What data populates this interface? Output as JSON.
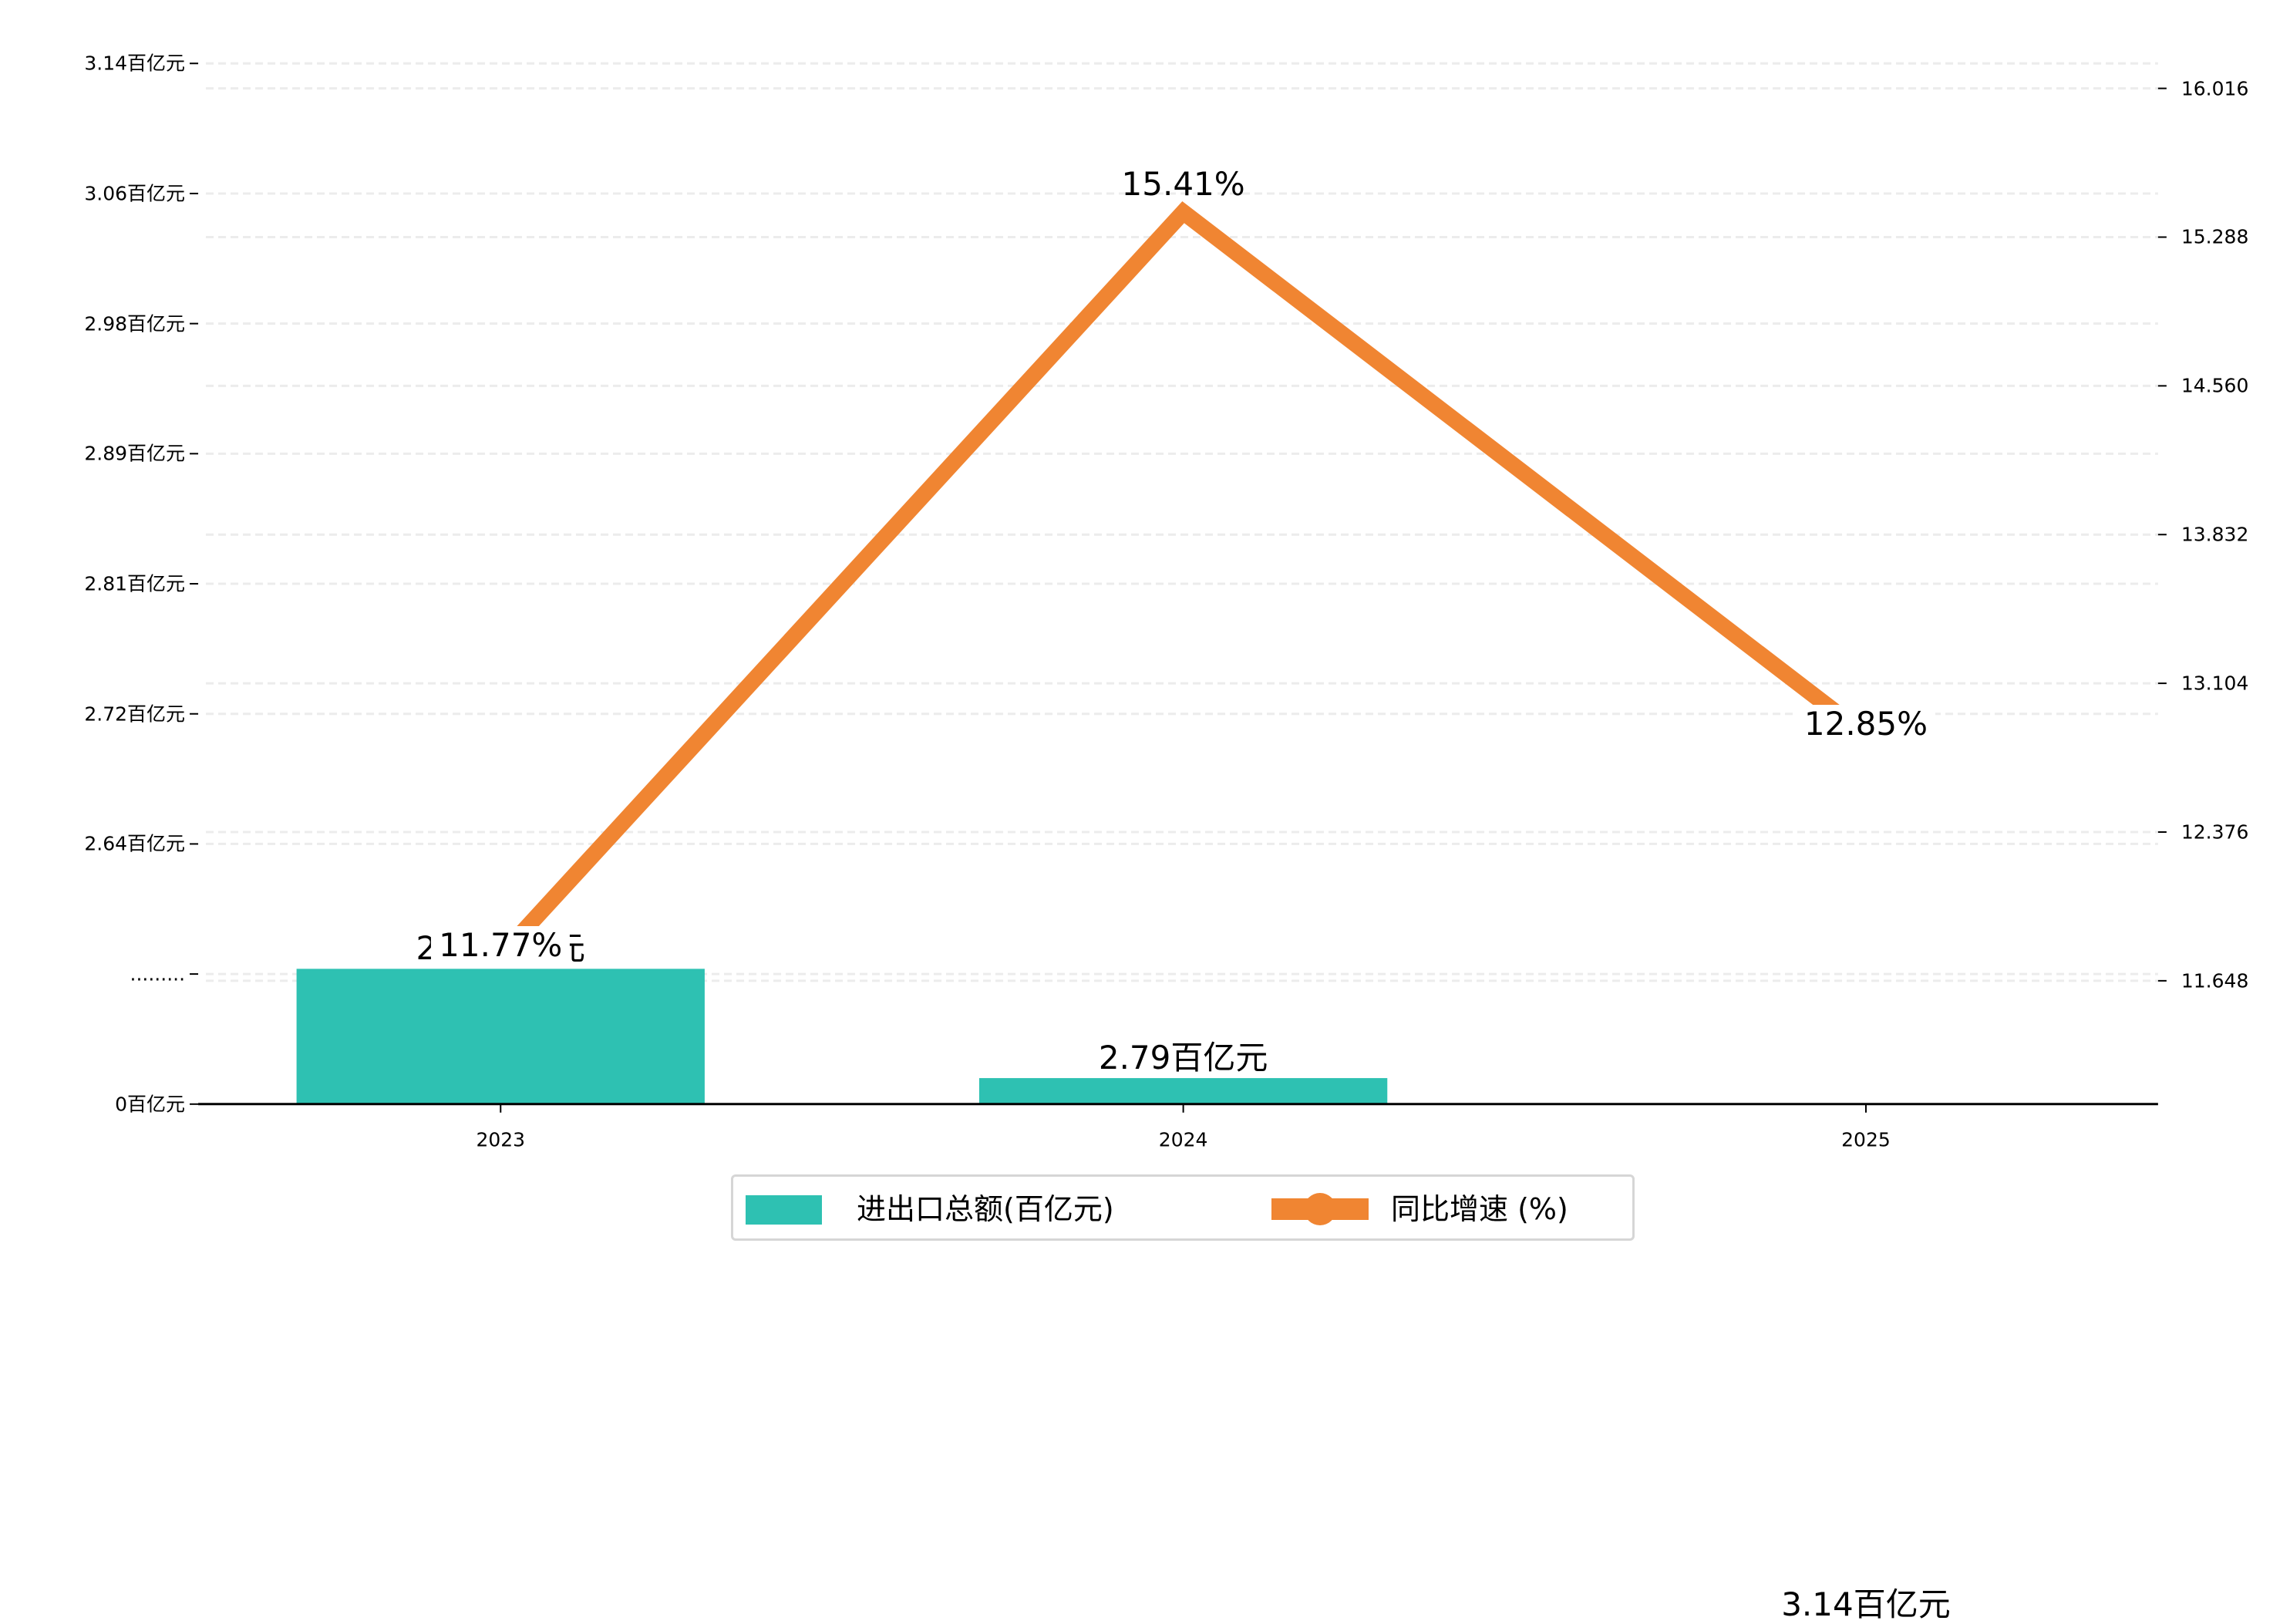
{
  "chart_data": {
    "type": "bar+line",
    "categories": [
      "2023",
      "2024",
      "2025"
    ],
    "series": [
      {
        "name": "进出口总额(百亿元)",
        "kind": "bar",
        "axis": "left",
        "values": [
          2.72,
          2.79,
          3.14
        ],
        "labels": [
          "2.72百亿元",
          "2.79百亿元",
          "3.14百亿元"
        ],
        "color": "#2ec1b2"
      },
      {
        "name": "同比增速 (%)",
        "kind": "line",
        "axis": "right",
        "values": [
          11.77,
          15.41,
          12.85
        ],
        "labels": [
          "11.77%",
          "15.41%",
          "12.85%"
        ],
        "color": "#f08532"
      }
    ],
    "left_axis": {
      "ticks": [
        {
          "value": 0,
          "label": "0百亿元"
        },
        {
          "value": null,
          "label": "........."
        },
        {
          "value": 2.64,
          "label": "2.64百亿元"
        },
        {
          "value": 2.72,
          "label": "2.72百亿元"
        },
        {
          "value": 2.81,
          "label": "2.81百亿元"
        },
        {
          "value": 2.89,
          "label": "2.89百亿元"
        },
        {
          "value": 2.98,
          "label": "2.98百亿元"
        },
        {
          "value": 3.06,
          "label": "3.06百亿元"
        },
        {
          "value": 3.14,
          "label": "3.14百亿元"
        }
      ],
      "broken": true
    },
    "right_axis": {
      "ticks": [
        "11.648",
        "12.376",
        "13.104",
        "13.832",
        "14.560",
        "15.288",
        "16.016"
      ],
      "ylim": [
        11.12,
        16.13
      ]
    },
    "grid": true,
    "legend_position": "bottom-center"
  }
}
